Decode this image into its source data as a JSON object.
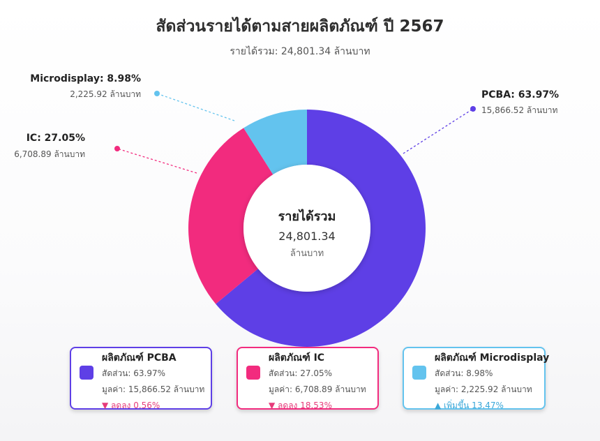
{
  "title": "สัดส่วนรายได้ตามสายผลิตภัณฑ์ ปี 2567",
  "subtitle": "รายได้รวม: 24,801.34 ล้านบาท",
  "center": {
    "title": "รายได้รวม",
    "value": "24,801.34",
    "unit": "ล้านบาท"
  },
  "chart_data": {
    "type": "pie",
    "title": "สัดส่วนรายได้ตามสายผลิตภัณฑ์ ปี 2567",
    "donut": true,
    "unit": "ล้านบาท",
    "total": 24801.34,
    "series": [
      {
        "name": "PCBA",
        "value": 15866.52,
        "percent": 63.97,
        "color": "#5e3fe6",
        "label": "PCBA: 63.97%",
        "value_label": "15,866.52 ล้านบาท"
      },
      {
        "name": "IC",
        "value": 6708.89,
        "percent": 27.05,
        "color": "#f22b7e",
        "label": "IC: 27.05%",
        "value_label": "6,708.89 ล้านบาท"
      },
      {
        "name": "Microdisplay",
        "value": 2225.92,
        "percent": 8.98,
        "color": "#63c3ee",
        "label": "Microdisplay: 8.98%",
        "value_label": "2,225.92 ล้านบาท"
      }
    ]
  },
  "cards": [
    {
      "title": "ผลิตภัณฑ์ PCBA",
      "share": "สัดส่วน: 63.97%",
      "value": "มูลค่า: 15,866.52 ล้านบาท",
      "change": "▼ ลดลง 0.56%",
      "border": "#5e3fe6",
      "color": "#5e3fe6",
      "trend_color": "#e63b7a"
    },
    {
      "title": "ผลิตภัณฑ์ IC",
      "share": "สัดส่วน: 27.05%",
      "value": "มูลค่า: 6,708.89 ล้านบาท",
      "change": "▼ ลดลง 18.53%",
      "border": "#f22b7e",
      "color": "#f22b7e",
      "trend_color": "#e63b7a"
    },
    {
      "title": "ผลิตภัณฑ์ Microdisplay",
      "share": "สัดส่วน: 8.98%",
      "value": "มูลค่า: 2,225.92 ล้านบาท",
      "change": "▲ เพิ่มขึ้น 13.47%",
      "border": "#63c3ee",
      "color": "#63c3ee",
      "trend_color": "#3aa7d8"
    }
  ]
}
